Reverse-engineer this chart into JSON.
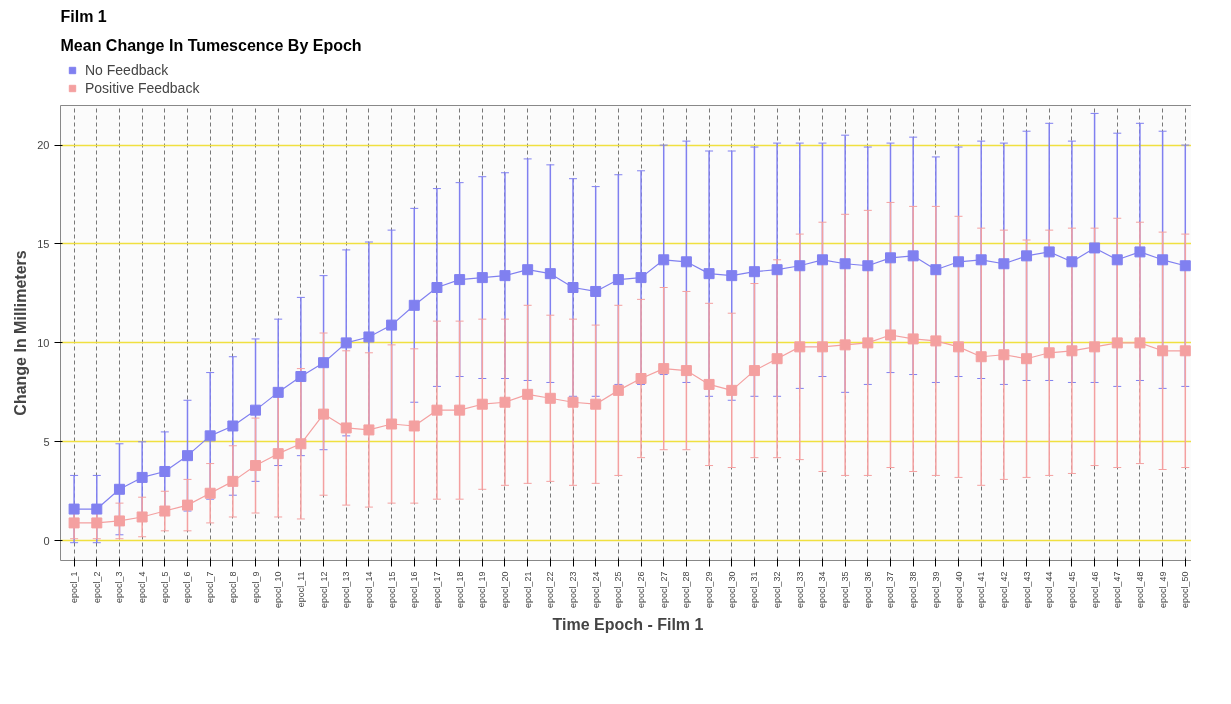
{
  "chart_data": {
    "type": "line",
    "title": "Film 1",
    "subtitle": "Mean Change In Tumescence By Epoch",
    "xlabel": "Time Epoch - Film 1",
    "ylabel": "Change In Millimeters",
    "categories": [
      "epocl_1",
      "epocl_2",
      "epocl_3",
      "epocl_4",
      "epocl_5",
      "epocl_6",
      "epocl_7",
      "epocl_8",
      "epocl_9",
      "epocl_10",
      "epocl_11",
      "epocl_12",
      "epocl_13",
      "epocl_14",
      "epocl_15",
      "epocl_16",
      "epocl_17",
      "epocl_18",
      "epocl_19",
      "epocl_20",
      "epocl_21",
      "epocl_22",
      "epocl_23",
      "epocl_24",
      "epocl_25",
      "epocl_26",
      "epocl_27",
      "epocl_28",
      "epocl_29",
      "epocl_30",
      "epocl_31",
      "epocl_32",
      "epocl_33",
      "epocl_34",
      "epocl_35",
      "epocl_36",
      "epocl_37",
      "epocl_38",
      "epocl_39",
      "epocl_40",
      "epocl_41",
      "epocl_42",
      "epocl_43",
      "epocl_44",
      "epocl_45",
      "epocl_46",
      "epocl_47",
      "epocl_48",
      "epocl_49",
      "epocl_50"
    ],
    "series": [
      {
        "name": "No Feedback",
        "color": "#8080f0",
        "values": [
          1.6,
          1.6,
          2.6,
          3.2,
          3.5,
          4.3,
          5.3,
          5.8,
          6.6,
          7.5,
          8.3,
          9.0,
          10.0,
          10.3,
          10.9,
          11.9,
          12.8,
          13.2,
          13.3,
          13.4,
          13.7,
          13.5,
          12.8,
          12.6,
          13.2,
          13.3,
          14.2,
          14.1,
          13.5,
          13.4,
          13.6,
          13.7,
          13.9,
          14.2,
          14.0,
          13.9,
          14.3,
          14.4,
          13.7,
          14.1,
          14.2,
          14.0,
          14.4,
          14.6,
          14.1,
          14.8,
          14.2,
          14.6,
          14.2,
          13.9
        ],
        "errors": [
          1.7,
          1.7,
          2.3,
          1.8,
          2.0,
          2.8,
          3.2,
          3.5,
          3.6,
          3.7,
          4.0,
          4.4,
          4.7,
          4.8,
          4.8,
          4.9,
          5.0,
          4.9,
          5.1,
          5.2,
          5.6,
          5.5,
          5.5,
          5.3,
          5.3,
          5.4,
          5.8,
          6.1,
          6.2,
          6.3,
          6.3,
          6.4,
          6.2,
          5.9,
          6.5,
          6.0,
          5.8,
          6.0,
          5.7,
          5.8,
          6.0,
          6.1,
          6.3,
          6.5,
          6.1,
          6.8,
          6.4,
          6.5,
          6.5,
          6.1
        ]
      },
      {
        "name": "Positive Feedback",
        "color": "#f4a0a0",
        "values": [
          0.9,
          0.9,
          1.0,
          1.2,
          1.5,
          1.8,
          2.4,
          3.0,
          3.8,
          4.4,
          4.9,
          6.4,
          5.7,
          5.6,
          5.9,
          5.8,
          6.6,
          6.6,
          6.9,
          7.0,
          7.4,
          7.2,
          7.0,
          6.9,
          7.6,
          8.2,
          8.7,
          8.6,
          7.9,
          7.6,
          8.6,
          9.2,
          9.8,
          9.8,
          9.9,
          10.0,
          10.4,
          10.2,
          10.1,
          9.8,
          9.3,
          9.4,
          9.2,
          9.5,
          9.6,
          9.8,
          10.0,
          10.0,
          9.6,
          9.6
        ],
        "errors": [
          0.8,
          0.8,
          0.9,
          1.0,
          1.0,
          1.3,
          1.5,
          1.8,
          2.4,
          3.2,
          3.8,
          4.1,
          3.9,
          3.9,
          4.0,
          3.9,
          4.5,
          4.5,
          4.3,
          4.2,
          4.5,
          4.2,
          4.2,
          4.0,
          4.3,
          4.0,
          4.1,
          4.0,
          4.1,
          3.9,
          4.4,
          5.0,
          5.7,
          6.3,
          6.6,
          6.7,
          6.7,
          6.7,
          6.8,
          6.6,
          6.5,
          6.3,
          6.0,
          6.2,
          6.2,
          6.0,
          6.3,
          6.1,
          6.0,
          5.9
        ]
      }
    ],
    "ylim": [
      -1,
      22
    ],
    "yticks": [
      0,
      5,
      10,
      15,
      20
    ],
    "grid": true,
    "legend": "top left",
    "marker": "square",
    "line_style": "solid"
  }
}
